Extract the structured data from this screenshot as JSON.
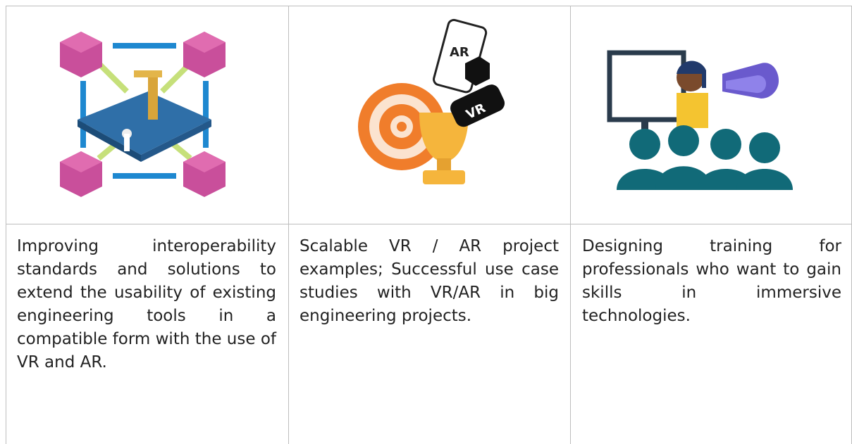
{
  "table": {
    "rows": [
      [
        {
          "icon_labels": []
        },
        {
          "icon_labels": [
            "AR",
            "VR"
          ]
        },
        {
          "icon_labels": []
        }
      ],
      [
        "Improving interoperability standards and solutions to extend the usability of existing engineering tools in a compatible form with the use of VR and AR.",
        "Scalable VR / AR project examples; Successful use case studies with VR/AR in big engineering projects.",
        "Designing training for professionals who want to gain skills in immersive technologies."
      ]
    ]
  }
}
